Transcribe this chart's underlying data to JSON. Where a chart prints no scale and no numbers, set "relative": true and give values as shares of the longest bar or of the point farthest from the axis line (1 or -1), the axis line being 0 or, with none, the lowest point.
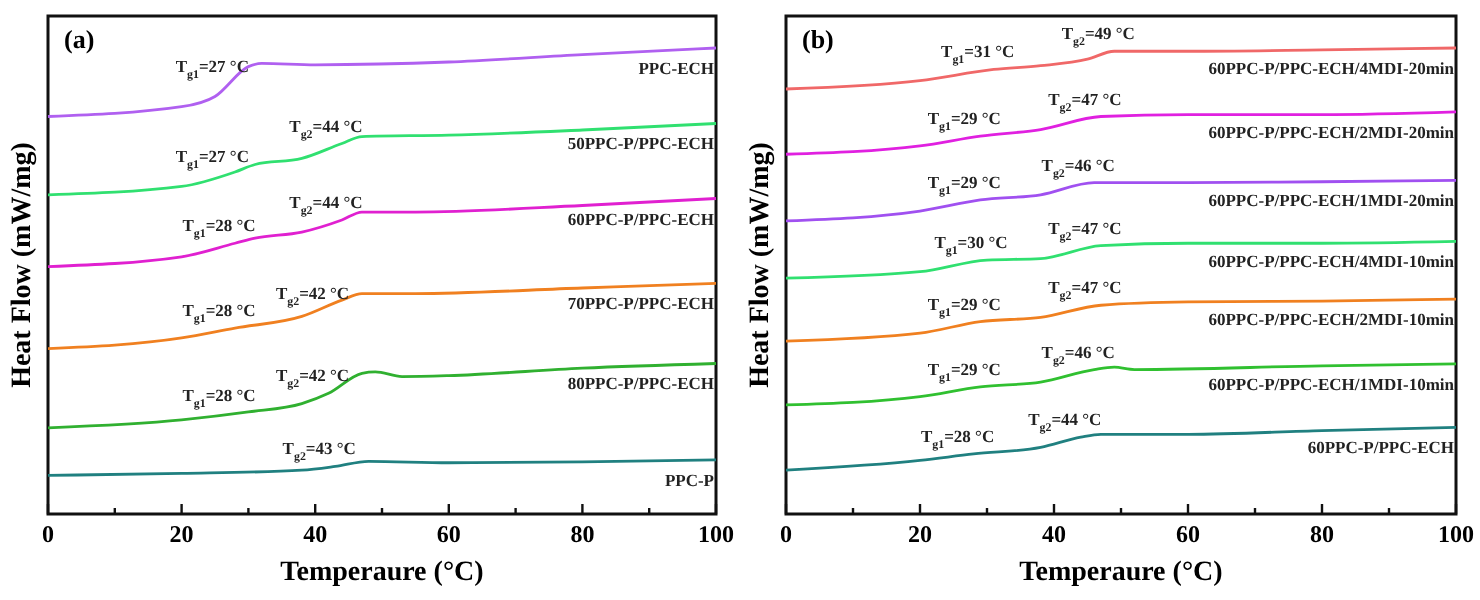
{
  "chart_data": [
    {
      "type": "line",
      "title": "(a)",
      "xlabel": "Temperaure (°C)",
      "ylabel": "Heat Flow (mW/mg)",
      "relative": true,
      "xlim": [
        0,
        100
      ],
      "xticks": [
        0,
        {
          "value": 10,
          "label": null
        },
        20,
        {
          "value": 30,
          "label": null
        },
        40,
        {
          "value": 50,
          "label": null
        },
        60,
        {
          "value": 70,
          "label": null
        },
        80,
        {
          "value": 90,
          "label": null
        },
        100
      ],
      "series": [
        {
          "name": "PPC-ECH",
          "color": "#b060f0",
          "x": [
            0,
            20,
            25,
            30,
            32,
            40,
            60,
            80,
            100
          ],
          "values": [
            0.853,
            0.874,
            0.896,
            0.96,
            0.967,
            0.964,
            0.97,
            0.986,
            1.0
          ]
        },
        {
          "name": "50PPC-P/PPC-ECH",
          "color": "#30e070",
          "x": [
            0,
            20,
            28,
            31,
            38,
            44,
            47,
            60,
            80,
            100
          ],
          "values": [
            0.685,
            0.703,
            0.734,
            0.75,
            0.763,
            0.795,
            0.81,
            0.813,
            0.824,
            0.838
          ]
        },
        {
          "name": "60PPC-P/PPC-ECH",
          "color": "#e020d0",
          "x": [
            0,
            20,
            28,
            31,
            38,
            44,
            47,
            55,
            80,
            100
          ],
          "values": [
            0.531,
            0.552,
            0.581,
            0.592,
            0.605,
            0.631,
            0.648,
            0.648,
            0.662,
            0.677
          ]
        },
        {
          "name": "70PPC-P/PPC-ECH",
          "color": "#f08020",
          "x": [
            0,
            20,
            28,
            38,
            44,
            47,
            55,
            80,
            100
          ],
          "values": [
            0.355,
            0.378,
            0.399,
            0.424,
            0.459,
            0.473,
            0.473,
            0.485,
            0.495
          ]
        },
        {
          "name": "80PPC-P/PPC-ECH",
          "color": "#30b030",
          "x": [
            0,
            20,
            30,
            38,
            42,
            47,
            49,
            53,
            60,
            80,
            100
          ],
          "values": [
            0.185,
            0.202,
            0.219,
            0.237,
            0.259,
            0.302,
            0.305,
            0.295,
            0.297,
            0.313,
            0.323
          ]
        },
        {
          "name": "PPC-P",
          "color": "#208080",
          "x": [
            0,
            20,
            38,
            43,
            48,
            60,
            80,
            100
          ],
          "values": [
            0.083,
            0.087,
            0.094,
            0.102,
            0.113,
            0.11,
            0.112,
            0.116
          ]
        }
      ],
      "annotations": [
        {
          "text": "T$_{g1}$=27 °C",
          "x": 27,
          "y": 0.922
        },
        {
          "text": "T$_{g2}$=44 °C",
          "x": 44,
          "y": 0.795
        },
        {
          "text": "T$_{g1}$=27 °C",
          "x": 27,
          "y": 0.73
        },
        {
          "text": "T$_{g2}$=44 °C",
          "x": 44,
          "y": 0.631
        },
        {
          "text": "T$_{g1}$=28 °C",
          "x": 28,
          "y": 0.581
        },
        {
          "text": "T$_{g2}$=42 °C",
          "x": 42,
          "y": 0.436
        },
        {
          "text": "T$_{g1}$=28 °C",
          "x": 28,
          "y": 0.399
        },
        {
          "text": "T$_{g2}$=42 °C",
          "x": 42,
          "y": 0.259
        },
        {
          "text": "T$_{g1}$=28 °C",
          "x": 28,
          "y": 0.216
        },
        {
          "text": "T$_{g2}$=43 °C",
          "x": 43,
          "y": 0.102
        }
      ]
    },
    {
      "type": "line",
      "title": "(b)",
      "xlabel": "Temperaure (°C)",
      "ylabel": "Heat Flow (mW/mg)",
      "relative": true,
      "xlim": [
        0,
        100
      ],
      "xticks": [
        0,
        {
          "value": 10,
          "label": null
        },
        20,
        {
          "value": 30,
          "label": null
        },
        40,
        {
          "value": 50,
          "label": null
        },
        60,
        {
          "value": 70,
          "label": null
        },
        80,
        {
          "value": 90,
          "label": null
        },
        100
      ],
      "series": [
        {
          "name": "60PPC-P/PPC-ECH/4MDI-20min",
          "color": "#f06868",
          "x": [
            0,
            20,
            31,
            38,
            45,
            49,
            60,
            80,
            100
          ],
          "values": [
            0.912,
            0.93,
            0.954,
            0.962,
            0.976,
            0.993,
            0.993,
            0.996,
            1.0
          ]
        },
        {
          "name": "60PPC-P/PPC-ECH/2MDI-20min",
          "color": "#e020e0",
          "x": [
            0,
            20,
            29,
            38,
            47,
            60,
            80,
            100
          ],
          "values": [
            0.772,
            0.79,
            0.811,
            0.825,
            0.853,
            0.857,
            0.857,
            0.863
          ]
        },
        {
          "name": "60PPC-P/PPC-ECH/1MDI-20min",
          "color": "#a050f0",
          "x": [
            0,
            20,
            29,
            38,
            46,
            60,
            80,
            100
          ],
          "values": [
            0.629,
            0.65,
            0.674,
            0.685,
            0.711,
            0.711,
            0.713,
            0.716
          ]
        },
        {
          "name": "60PPC-P/PPC-ECH/4MDI-10min",
          "color": "#30e070",
          "x": [
            0,
            20,
            30,
            38,
            47,
            60,
            80,
            100
          ],
          "values": [
            0.506,
            0.52,
            0.545,
            0.548,
            0.576,
            0.581,
            0.581,
            0.585
          ]
        },
        {
          "name": "60PPC-P/PPC-ECH/2MDI-10min",
          "color": "#f08020",
          "x": [
            0,
            20,
            29,
            38,
            47,
            60,
            80,
            100
          ],
          "values": [
            0.371,
            0.388,
            0.413,
            0.422,
            0.448,
            0.455,
            0.457,
            0.461
          ]
        },
        {
          "name": "60PPC-P/PPC-ECH/1MDI-10min",
          "color": "#30c030",
          "x": [
            0,
            20,
            29,
            38,
            46,
            49,
            52,
            80,
            100
          ],
          "values": [
            0.234,
            0.252,
            0.273,
            0.283,
            0.31,
            0.315,
            0.31,
            0.318,
            0.322
          ]
        },
        {
          "name": "60PPC-P/PPC-ECH",
          "color": "#208080",
          "x": [
            0,
            20,
            28,
            38,
            44,
            47,
            60,
            80,
            100
          ],
          "values": [
            0.094,
            0.115,
            0.129,
            0.143,
            0.165,
            0.171,
            0.171,
            0.179,
            0.186
          ]
        }
      ],
      "annotations": [
        {
          "text": "T$_{g1}$=31 °C",
          "x": 31,
          "y": 0.954
        },
        {
          "text": "T$_{g2}$=49 °C",
          "x": 49,
          "y": 0.993
        },
        {
          "text": "T$_{g1}$=29 °C",
          "x": 29,
          "y": 0.811
        },
        {
          "text": "T$_{g2}$=47 °C",
          "x": 47,
          "y": 0.853
        },
        {
          "text": "T$_{g1}$=29 °C",
          "x": 29,
          "y": 0.674
        },
        {
          "text": "T$_{g2}$=46 °C",
          "x": 46,
          "y": 0.711
        },
        {
          "text": "T$_{g1}$=30 °C",
          "x": 30,
          "y": 0.545
        },
        {
          "text": "T$_{g2}$=47 °C",
          "x": 47,
          "y": 0.576
        },
        {
          "text": "T$_{g1}$=29 °C",
          "x": 29,
          "y": 0.413
        },
        {
          "text": "T$_{g2}$=47 °C",
          "x": 47,
          "y": 0.448
        },
        {
          "text": "T$_{g1}$=29 °C",
          "x": 29,
          "y": 0.273
        },
        {
          "text": "T$_{g2}$=46 °C",
          "x": 46,
          "y": 0.31
        },
        {
          "text": "T$_{g1}$=28 °C",
          "x": 28,
          "y": 0.129
        },
        {
          "text": "T$_{g2}$=44 °C",
          "x": 44,
          "y": 0.165
        }
      ]
    }
  ]
}
